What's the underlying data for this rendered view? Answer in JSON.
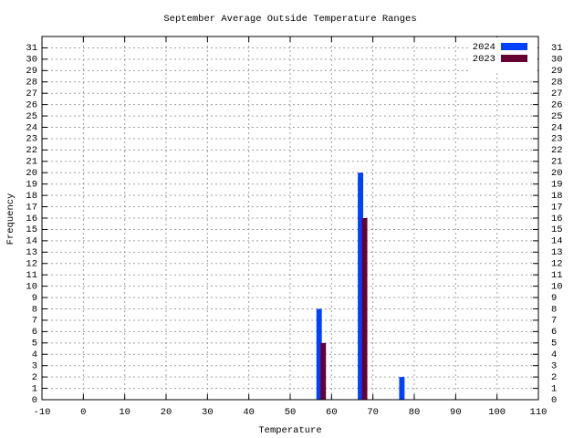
{
  "chart_data": {
    "type": "bar",
    "title": "September Average Outside Temperature Ranges",
    "x_label": "Temperature",
    "y_label": "Frequency",
    "series": [
      {
        "name": "2024",
        "color": "#0040ff",
        "x": [
          57,
          67,
          77
        ],
        "values": [
          8,
          20,
          2
        ]
      },
      {
        "name": "2023",
        "color": "#660033",
        "x": [
          58,
          68
        ],
        "values": [
          5,
          16
        ]
      }
    ],
    "xlim": [
      -10,
      110
    ],
    "xticks": [
      -10,
      0,
      10,
      20,
      30,
      40,
      50,
      60,
      70,
      80,
      90,
      100,
      110
    ],
    "ylim": [
      0,
      32
    ],
    "yticks": [
      0,
      1,
      2,
      3,
      4,
      5,
      6,
      7,
      8,
      9,
      10,
      11,
      12,
      13,
      14,
      15,
      16,
      17,
      18,
      19,
      20,
      21,
      22,
      23,
      24,
      25,
      26,
      27,
      28,
      29,
      30,
      31
    ],
    "grid": true,
    "legend": "top-right"
  }
}
